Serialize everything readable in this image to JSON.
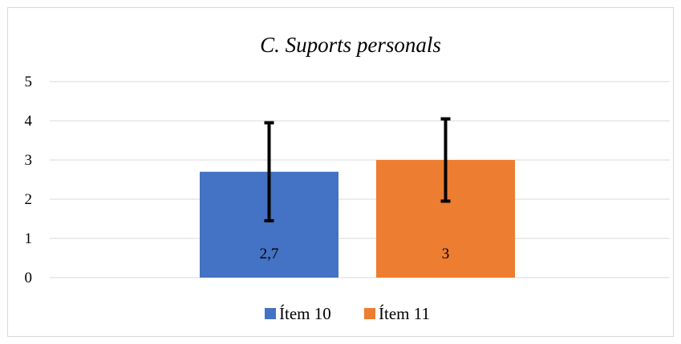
{
  "chart_data": {
    "type": "bar",
    "title": "C. Suports personals",
    "xlabel": "",
    "ylabel": "",
    "ylim": [
      0,
      5
    ],
    "yticks": [
      "0",
      "1",
      "2",
      "3",
      "4",
      "5"
    ],
    "grid": true,
    "legend": "bottom",
    "categories": [
      ""
    ],
    "series": [
      {
        "name": "Ítem 10",
        "values": [
          2.7
        ],
        "label": "2,7",
        "error_low": 1.45,
        "error_high": 3.95,
        "color": "#4472C4"
      },
      {
        "name": "Ítem 11",
        "values": [
          3
        ],
        "label": "3",
        "error_low": 1.95,
        "error_high": 4.05,
        "color": "#ED7D31"
      }
    ]
  }
}
